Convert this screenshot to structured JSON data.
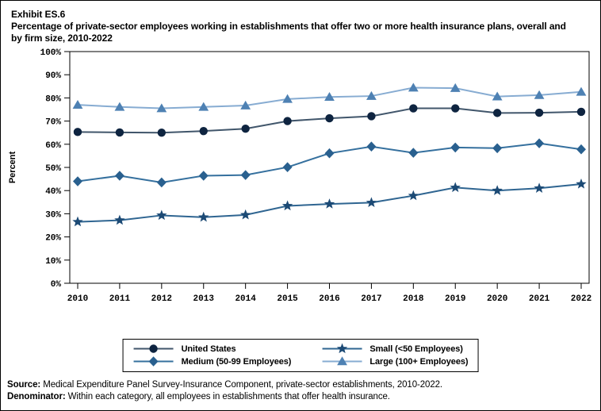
{
  "header": {
    "exhibit_label": "Exhibit ES.6",
    "title": "Percentage of private-sector employees working in establishments that offer two or more health insurance plans, overall and by firm size, 2010-2022"
  },
  "chart_data": {
    "type": "line",
    "x": [
      2010,
      2011,
      2012,
      2013,
      2014,
      2015,
      2016,
      2017,
      2018,
      2019,
      2020,
      2021,
      2022
    ],
    "series": [
      {
        "name": "United States",
        "marker": "circle",
        "marker_color": "#0e2440",
        "line_color": "#41566b",
        "values": [
          65.3,
          65.1,
          65.0,
          65.7,
          66.7,
          70.0,
          71.2,
          72.1,
          75.5,
          75.5,
          73.5,
          73.6,
          74.0
        ]
      },
      {
        "name": "Small (<50 Employees)",
        "marker": "star",
        "marker_color": "#1c4a75",
        "line_color": "#2f6591",
        "values": [
          26.5,
          27.2,
          29.3,
          28.5,
          29.5,
          33.4,
          34.2,
          34.8,
          37.8,
          41.3,
          40.0,
          41.0,
          42.8
        ]
      },
      {
        "name": "Medium (50-99 Employees)",
        "marker": "diamond",
        "marker_color": "#29608f",
        "line_color": "#35709e",
        "values": [
          44.0,
          46.4,
          43.5,
          46.4,
          46.7,
          50.1,
          56.1,
          59.0,
          56.3,
          58.6,
          58.3,
          60.4,
          57.8
        ]
      },
      {
        "name": "Large (100+ Employees)",
        "marker": "triangle",
        "marker_color": "#4e81b3",
        "line_color": "#87acd2",
        "values": [
          77.0,
          76.1,
          75.5,
          76.1,
          76.7,
          79.5,
          80.4,
          80.8,
          84.4,
          84.2,
          80.6,
          81.2,
          82.6
        ]
      }
    ],
    "title": "Percentage of private-sector employees working in establishments that offer two or more health insurance plans, overall and by firm size, 2010-2022",
    "xlabel": "",
    "ylabel": "Percent",
    "ylim": [
      0,
      100
    ],
    "ytick_step": 10,
    "ytick_suffix": "%",
    "grid": false,
    "legend_position": "bottom"
  },
  "footer": {
    "source_label": "Source:",
    "source_text": " Medical Expenditure Panel Survey-Insurance Component, private-sector establishments, 2010-2022.",
    "denominator_label": "Denominator:",
    "denominator_text": " Within each category, all employees in establishments that offer health insurance."
  }
}
